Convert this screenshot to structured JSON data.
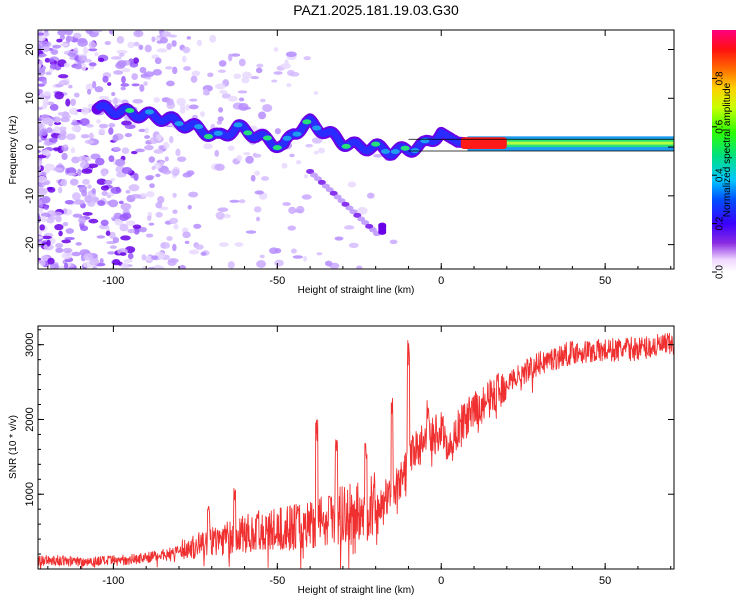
{
  "title": "PAZ1.2025.181.19.03.G30",
  "chart_data": [
    {
      "type": "heatmap",
      "xlabel": "Height of straight line (km)",
      "ylabel": "Frequency (Hz)",
      "xlim": [
        -123,
        71
      ],
      "ylim": [
        -25,
        24
      ],
      "xticks": [
        -100,
        -50,
        0,
        50
      ],
      "yticks": [
        -20,
        -10,
        0,
        10,
        20
      ],
      "colorbar": {
        "label": "Normalized spectral amplitude",
        "range": [
          0.0,
          1.0
        ],
        "ticks": [
          0.0,
          0.2,
          0.4,
          0.6,
          0.8
        ],
        "tick_labels": [
          "0.0",
          "0.2",
          "0.4",
          "0.6",
          "0.8"
        ]
      },
      "ridge": {
        "x": [
          -105,
          -95,
          -85,
          -75,
          -68,
          -62,
          -55,
          -48,
          -45,
          -40,
          -35,
          -30,
          -25,
          -20,
          -15,
          -10,
          -5,
          0,
          5,
          10,
          20,
          30,
          40,
          50,
          60,
          70
        ],
        "y": [
          8,
          7,
          6,
          4,
          2,
          4,
          2,
          0,
          3,
          5,
          3,
          1,
          0,
          0,
          -1,
          -0.5,
          0.5,
          3,
          1,
          0.8,
          0.8,
          0.8,
          0.8,
          0.8,
          0.8,
          0.8
        ],
        "amplitude": [
          0.15,
          0.2,
          0.2,
          0.3,
          0.3,
          0.3,
          0.3,
          0.3,
          0.3,
          0.25,
          0.3,
          0.3,
          0.3,
          0.3,
          0.35,
          0.4,
          0.45,
          0.5,
          0.6,
          0.95,
          0.4,
          0.35,
          0.45,
          0.45,
          0.45,
          0.45
        ]
      },
      "colors": {
        "ridge_core": "#ff1a1a",
        "ridge_mid": "#26e07a",
        "ridge_edge": "#1e9cf0",
        "low": "#6a00e8",
        "noise": "#c9a8ff"
      }
    },
    {
      "type": "line",
      "xlabel": "Height of straight line (km)",
      "ylabel": "SNR (10 * v/v)",
      "xlim": [
        -123,
        71
      ],
      "ylim": [
        0,
        3250
      ],
      "xticks": [
        -100,
        -50,
        0,
        50
      ],
      "yticks": [
        1000,
        2000,
        3000
      ],
      "line_color": "#f03030",
      "trend": {
        "x": [
          -123,
          -110,
          -100,
          -90,
          -80,
          -70,
          -60,
          -50,
          -40,
          -30,
          -25,
          -20,
          -15,
          -12,
          -10,
          -8,
          -5,
          0,
          3,
          5,
          10,
          15,
          20,
          30,
          40,
          50,
          60,
          70
        ],
        "y": [
          120,
          100,
          110,
          150,
          240,
          380,
          470,
          520,
          620,
          720,
          760,
          840,
          1000,
          1200,
          1420,
          1600,
          1700,
          1850,
          1600,
          1900,
          2100,
          2280,
          2500,
          2750,
          2900,
          2920,
          2950,
          3000
        ]
      },
      "peaks": {
        "x": [
          -71,
          -63,
          -56,
          -38,
          -34,
          -32,
          -23,
          -15,
          -10,
          -4,
          3
        ],
        "y": [
          850,
          1080,
          780,
          2000,
          1020,
          1840,
          1730,
          2380,
          3140,
          2300,
          1350
        ]
      }
    }
  ]
}
